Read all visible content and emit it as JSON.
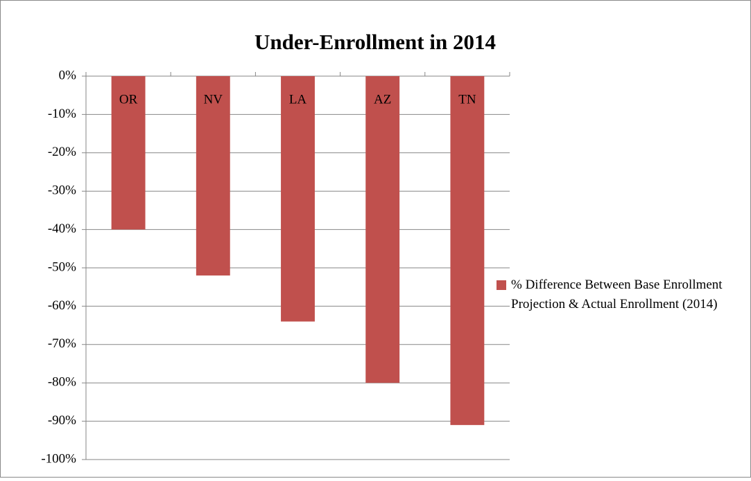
{
  "chart_data": {
    "type": "bar",
    "title": "Under-Enrollment in 2014",
    "categories": [
      "OR",
      "NV",
      "LA",
      "AZ",
      "TN"
    ],
    "series": [
      {
        "name": "% Difference Between Base Enrollment Projection & Actual Enrollment (2014)",
        "color": "#c0504d",
        "values": [
          -40,
          -52,
          -64,
          -80,
          -91
        ]
      }
    ],
    "ylim": [
      -100,
      0
    ],
    "yticks": [
      {
        "value": -100,
        "label": "-100%"
      },
      {
        "value": -90,
        "label": "-90%"
      },
      {
        "value": -80,
        "label": "-80%"
      },
      {
        "value": -70,
        "label": "-70%"
      },
      {
        "value": -60,
        "label": "-60%"
      },
      {
        "value": -50,
        "label": "-50%"
      },
      {
        "value": -40,
        "label": "-40%"
      },
      {
        "value": -30,
        "label": "-30%"
      },
      {
        "value": -20,
        "label": "-20%"
      },
      {
        "value": -10,
        "label": "-10%"
      },
      {
        "value": 0,
        "label": "0%"
      }
    ],
    "grid": true,
    "legend": "right"
  }
}
